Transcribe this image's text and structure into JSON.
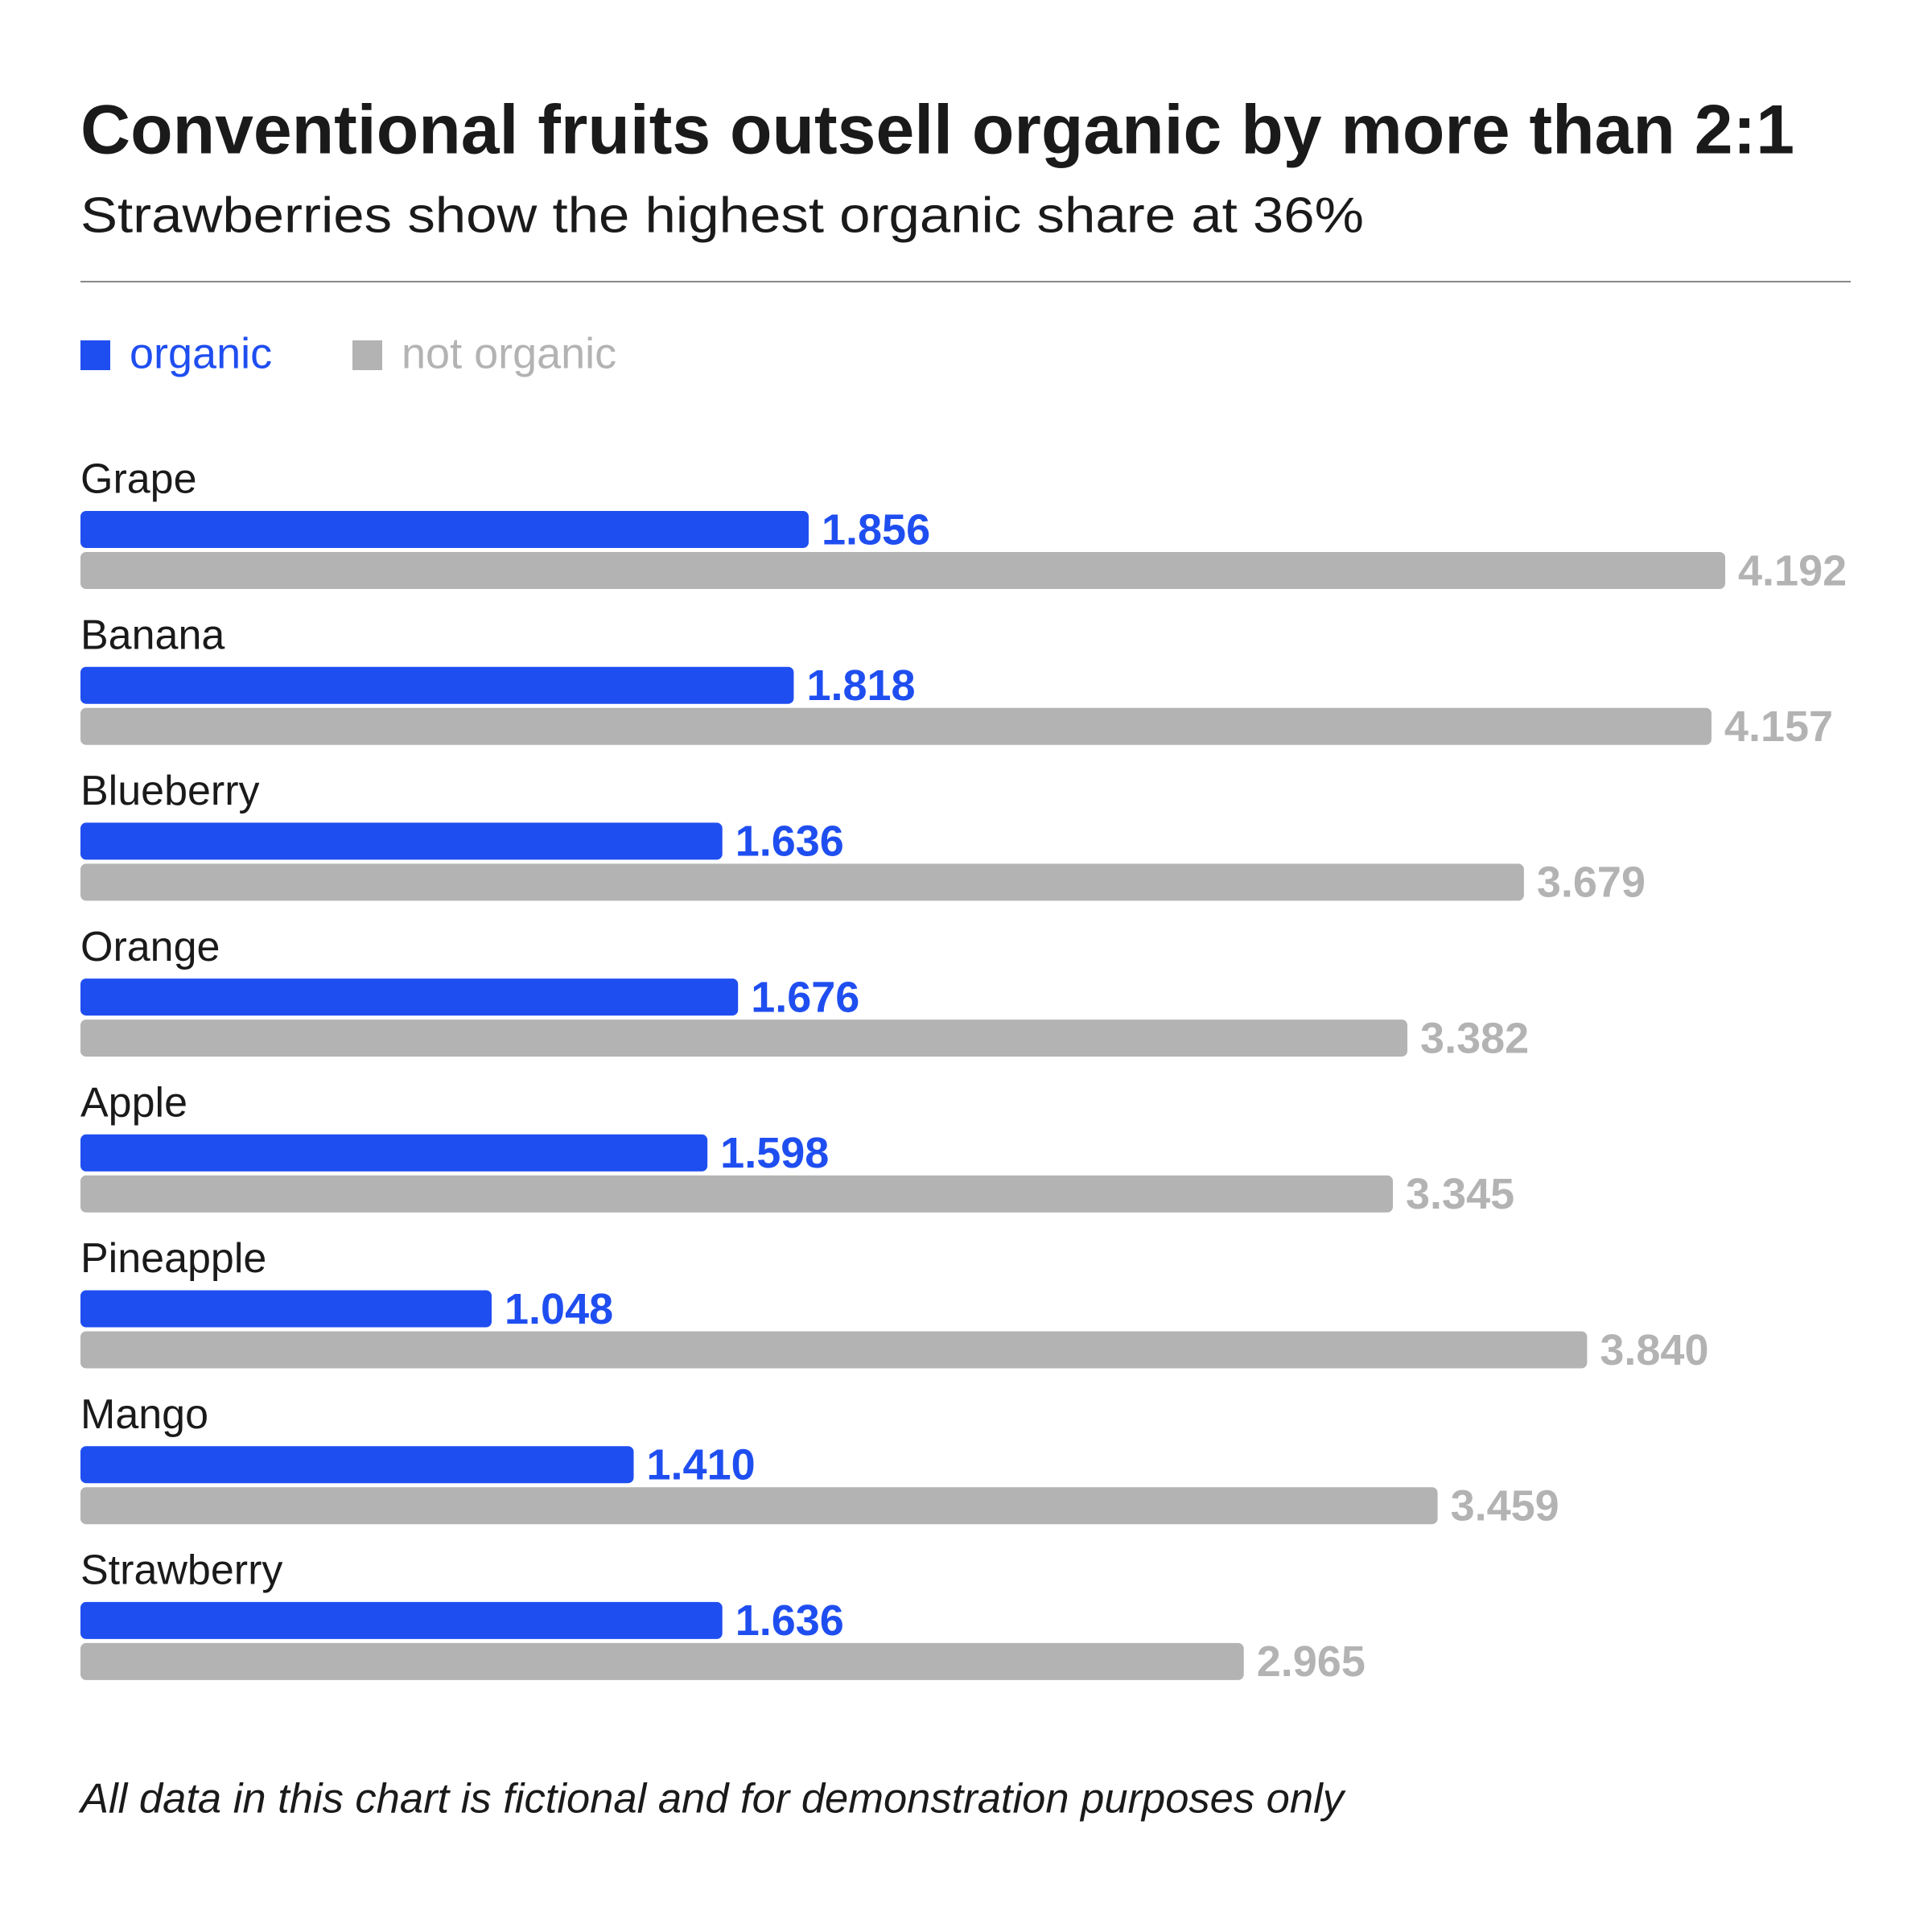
{
  "chart_data": {
    "type": "bar",
    "orientation": "horizontal",
    "title": "Conventional fruits outsell organic by more than 2:1",
    "subtitle": "Strawberries show the highest organic share at 36%",
    "note": "All data in this chart is fictional and for demonstration purposes only",
    "categories": [
      "Grape",
      "Banana",
      "Blueberry",
      "Orange",
      "Apple",
      "Pineapple",
      "Mango",
      "Strawberry"
    ],
    "series": [
      {
        "name": "organic",
        "color": "#1f4ef0",
        "values": [
          1.856,
          1.818,
          1.636,
          1.676,
          1.598,
          1.048,
          1.41,
          1.636
        ],
        "value_labels": [
          "1.856",
          "1.818",
          "1.636",
          "1.676",
          "1.598",
          "1.048",
          "1.410",
          "1.636"
        ]
      },
      {
        "name": "not organic",
        "color": "#b3b3b3",
        "values": [
          4.192,
          4.157,
          3.679,
          3.382,
          3.345,
          3.84,
          3.459,
          2.965
        ],
        "value_labels": [
          "4.192",
          "4.157",
          "3.679",
          "3.382",
          "3.345",
          "3.840",
          "3.459",
          "2.965"
        ]
      }
    ]
  }
}
